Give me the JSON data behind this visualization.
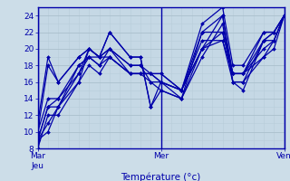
{
  "xlabel": "Température (°c)",
  "xlim": [
    0,
    96
  ],
  "ylim": [
    8,
    25
  ],
  "yticks": [
    8,
    10,
    12,
    14,
    16,
    18,
    20,
    22,
    24
  ],
  "xtick_positions": [
    0,
    48,
    96
  ],
  "xtick_labels": [
    "MarJeu",
    "Mer",
    "Ven"
  ],
  "bg_color": "#ccdde8",
  "plot_bg_color": "#c5d8e5",
  "line_color": "#0000aa",
  "grid_major_color": "#aabfcc",
  "grid_minor_color": "#b8ccda",
  "series": [
    [
      0,
      9,
      4,
      10,
      8,
      13,
      16,
      16,
      20,
      20,
      24,
      19,
      28,
      22,
      36,
      19,
      40,
      19,
      44,
      13,
      48,
      16,
      56,
      15,
      64,
      20,
      72,
      24,
      76,
      17,
      80,
      17,
      88,
      19,
      92,
      21,
      96,
      24
    ],
    [
      0,
      9,
      4,
      11,
      8,
      13,
      16,
      17,
      20,
      20,
      24,
      19,
      28,
      22,
      36,
      19,
      40,
      19,
      44,
      13,
      48,
      15,
      56,
      14,
      64,
      19,
      72,
      23,
      76,
      16,
      80,
      16,
      88,
      19,
      92,
      20,
      96,
      24
    ],
    [
      0,
      9,
      4,
      13,
      8,
      13,
      16,
      18,
      20,
      19,
      24,
      18,
      28,
      20,
      36,
      18,
      40,
      18,
      44,
      16,
      48,
      16,
      56,
      15,
      64,
      20,
      72,
      22,
      76,
      17,
      80,
      17,
      88,
      20,
      92,
      21,
      96,
      24
    ],
    [
      0,
      8,
      4,
      12,
      8,
      12,
      16,
      16,
      20,
      18,
      24,
      17,
      28,
      19,
      36,
      17,
      40,
      17,
      44,
      17,
      48,
      16,
      56,
      14,
      64,
      20,
      72,
      21,
      76,
      16,
      80,
      16,
      88,
      21,
      92,
      22,
      96,
      24
    ],
    [
      0,
      9,
      4,
      13,
      8,
      14,
      16,
      17,
      20,
      19,
      24,
      18,
      28,
      19,
      36,
      17,
      40,
      17,
      44,
      17,
      48,
      17,
      56,
      15,
      64,
      21,
      72,
      21,
      76,
      17,
      80,
      17,
      88,
      21,
      92,
      22,
      96,
      24
    ],
    [
      0,
      10,
      4,
      14,
      8,
      14,
      16,
      18,
      20,
      19,
      24,
      19,
      28,
      19,
      36,
      17,
      40,
      17,
      44,
      17,
      48,
      17,
      56,
      15,
      64,
      22,
      72,
      22,
      76,
      17,
      80,
      17,
      88,
      22,
      92,
      22,
      96,
      24
    ],
    [
      0,
      11,
      4,
      19,
      8,
      16,
      16,
      19,
      20,
      20,
      24,
      19,
      28,
      20,
      36,
      18,
      40,
      18,
      44,
      17,
      48,
      16,
      56,
      15,
      64,
      23,
      72,
      25,
      76,
      18,
      80,
      18,
      88,
      22,
      92,
      22,
      96,
      24
    ],
    [
      0,
      10,
      4,
      18,
      8,
      16,
      16,
      19,
      20,
      20,
      24,
      19,
      28,
      20,
      36,
      17,
      40,
      17,
      44,
      16,
      48,
      15,
      56,
      14,
      64,
      22,
      72,
      24,
      76,
      16,
      80,
      15,
      88,
      21,
      92,
      21,
      96,
      24
    ]
  ]
}
